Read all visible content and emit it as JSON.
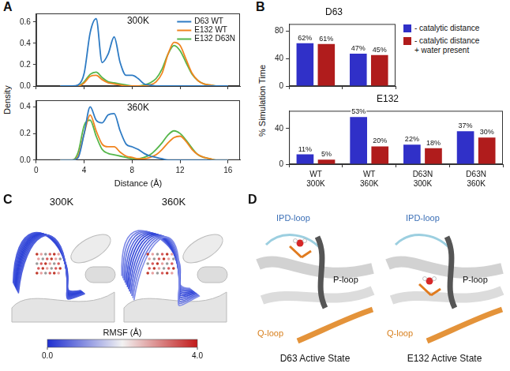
{
  "chart_data": [
    {
      "panel": "A",
      "type": "line",
      "title": "300K",
      "y_label": "Density",
      "x": [
        2,
        2.5,
        3,
        3.5,
        4,
        4.5,
        5,
        5.5,
        6,
        6.5,
        7,
        7.5,
        8,
        8.5,
        9,
        9.5,
        10,
        10.5,
        11,
        11.5,
        12,
        12.5,
        13,
        13.5,
        14,
        14.5,
        15,
        15.5,
        16
      ],
      "series": [
        {
          "name": "D63 WT",
          "color": "#2e7bc4",
          "values": [
            0,
            0,
            0,
            0.01,
            0.12,
            0.5,
            0.63,
            0.22,
            0.3,
            0.46,
            0.22,
            0.1,
            0.1,
            0.07,
            0.02,
            0.01,
            0,
            0,
            0,
            0,
            0,
            0,
            0,
            0,
            0,
            0,
            0,
            0,
            0
          ]
        },
        {
          "name": "E132 WT",
          "color": "#f0841f",
          "values": [
            0,
            0,
            0,
            0,
            0.03,
            0.09,
            0.1,
            0.06,
            0.03,
            0.02,
            0.01,
            0,
            0,
            0,
            0,
            0.01,
            0.04,
            0.12,
            0.3,
            0.41,
            0.38,
            0.25,
            0.12,
            0.05,
            0.02,
            0.01,
            0,
            0,
            0
          ]
        },
        {
          "name": "E132 D63N",
          "color": "#55b64a",
          "values": [
            0,
            0,
            0,
            0,
            0.04,
            0.11,
            0.13,
            0.08,
            0.04,
            0.03,
            0.02,
            0.01,
            0,
            0,
            0.01,
            0.03,
            0.07,
            0.16,
            0.3,
            0.38,
            0.33,
            0.22,
            0.11,
            0.05,
            0.02,
            0.01,
            0,
            0,
            0
          ]
        }
      ],
      "xlim": [
        0,
        17
      ],
      "xticks": [
        0,
        4,
        8,
        12,
        16
      ],
      "ylim": [
        0,
        0.68
      ],
      "yticks": [
        {
          "value": 0,
          "label": "0.0"
        },
        0.2,
        0.4,
        0.6
      ],
      "grid": false,
      "legend": "upper right",
      "tick_labels": "y"
    },
    {
      "type": "line",
      "title": "360K",
      "x_label": "Distance (Å)",
      "x": [
        2,
        2.5,
        3,
        3.5,
        4,
        4.5,
        5,
        5.5,
        6,
        6.5,
        7,
        7.5,
        8,
        8.5,
        9,
        9.5,
        10,
        10.5,
        11,
        11.5,
        12,
        12.5,
        13,
        13.5,
        14,
        14.5,
        15,
        15.5,
        16
      ],
      "series": [
        {
          "color": "#2e7bc4",
          "values": [
            0,
            0,
            0,
            0.02,
            0.2,
            0.4,
            0.3,
            0.28,
            0.34,
            0.35,
            0.22,
            0.12,
            0.1,
            0.08,
            0.05,
            0.03,
            0.02,
            0.01,
            0,
            0,
            0,
            0,
            0,
            0,
            0,
            0,
            0,
            0,
            0
          ]
        },
        {
          "color": "#f0841f",
          "values": [
            0,
            0,
            0,
            0.03,
            0.2,
            0.34,
            0.22,
            0.12,
            0.1,
            0.1,
            0.06,
            0.03,
            0.02,
            0.01,
            0.01,
            0.02,
            0.04,
            0.08,
            0.13,
            0.17,
            0.18,
            0.14,
            0.08,
            0.04,
            0.02,
            0.01,
            0,
            0,
            0
          ]
        },
        {
          "color": "#55b64a",
          "values": [
            0,
            0,
            0,
            0.06,
            0.26,
            0.3,
            0.18,
            0.08,
            0.05,
            0.04,
            0.03,
            0.02,
            0.01,
            0.01,
            0.02,
            0.04,
            0.08,
            0.13,
            0.19,
            0.22,
            0.2,
            0.15,
            0.09,
            0.04,
            0.02,
            0.01,
            0,
            0,
            0
          ]
        }
      ],
      "xlim": [
        0,
        17
      ],
      "xticks": [
        0,
        4,
        8,
        12,
        16
      ],
      "ylim": [
        0,
        0.45
      ],
      "yticks": [
        {
          "value": 0,
          "label": "0.0"
        },
        0.2,
        0.4
      ],
      "grid": false
    },
    {
      "panel": "B",
      "type": "bar",
      "title": "D63",
      "y_label": "% Simulation Time",
      "categories": [
        null,
        null
      ],
      "series": [
        {
          "name": "- catalytic distance",
          "color": "#3030c8",
          "values": [
            62,
            47
          ],
          "value_labels": [
            "62%",
            "47%"
          ]
        },
        {
          "name": "- catalytic distance + water present",
          "color": "#b01c1c",
          "values": [
            61,
            45
          ],
          "value_labels": [
            "61%",
            "45%"
          ]
        }
      ],
      "ylim": [
        0,
        90
      ],
      "yticks": [
        0,
        40,
        80
      ],
      "grid": false,
      "legend": "right",
      "data_labels": true,
      "tick_labels": "y"
    },
    {
      "type": "bar",
      "title": "E132",
      "categories": [
        "WT 300K",
        "WT 360K",
        "D63N 300K",
        "D63N 360K"
      ],
      "series": [
        {
          "color": "#3030c8",
          "values": [
            11,
            53,
            22,
            37
          ],
          "value_labels": [
            "11%",
            "53%",
            "22%",
            "37%"
          ]
        },
        {
          "color": "#b01c1c",
          "values": [
            5,
            20,
            18,
            30
          ],
          "value_labels": [
            "5%",
            "20%",
            "18%",
            "30%"
          ]
        }
      ],
      "ylim": [
        0,
        60
      ],
      "yticks": [
        0,
        40
      ],
      "grid": false,
      "data_labels": true
    }
  ],
  "images": [
    {
      "panel": "C",
      "structures": [
        "300K",
        "360K"
      ],
      "colorbar": {
        "title": "RMSF (Å)",
        "range": [
          0,
          4
        ],
        "ticks": [
          {
            "value": 0,
            "label": "0.0"
          },
          {
            "value": 4,
            "label": "4.0"
          }
        ]
      }
    },
    {
      "panel": "D",
      "structures": [
        {
          "caption": "D63 Active State",
          "labels": [
            "IPD-loop",
            "P-loop",
            "Q-loop"
          ]
        },
        {
          "caption": "E132 Active State",
          "labels": [
            "IPD-loop",
            "P-loop",
            "Q-loop"
          ]
        }
      ]
    }
  ]
}
